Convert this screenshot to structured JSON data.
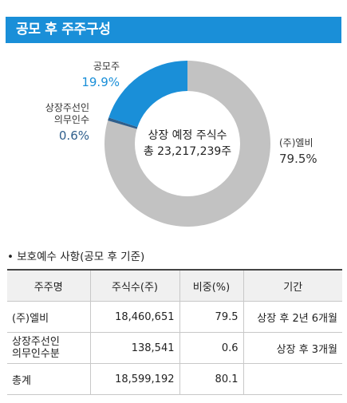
{
  "header": {
    "title": "공모 후 주주구성"
  },
  "chart_data": {
    "type": "pie",
    "style": "donut",
    "center_text": [
      "상장 예정 주식수",
      "총 23,217,239주"
    ],
    "slices": [
      {
        "label": "(주)엘비",
        "value": 79.5,
        "pct_label": "79.5%",
        "color": "#c2c2c2"
      },
      {
        "label": "상장주선인\n의무인수",
        "value": 0.6,
        "pct_label": "0.6%",
        "color": "#2f5f8c"
      },
      {
        "label": "공모주",
        "value": 19.9,
        "pct_label": "19.9%",
        "color": "#1a8fd8"
      }
    ]
  },
  "labels": {
    "gongmo_name": "공모주",
    "gongmo_pct": "19.9%",
    "uimu_name_1": "상장주선인",
    "uimu_name_2": "의무인수",
    "uimu_pct": "0.6%",
    "lb_name": "(주)엘비",
    "lb_pct": "79.5%",
    "center_1": "상장 예정 주식수",
    "center_2": "총 23,217,239주"
  },
  "section": {
    "title": "• 보호예수 사항(공모 후 기준)"
  },
  "table": {
    "headers": [
      "주주명",
      "주식수(주)",
      "비중(%)",
      "기간"
    ],
    "rows": [
      {
        "name": "(주)엘비",
        "shares": "18,460,651",
        "ratio": "79.5",
        "period": "상장 후 2년 6개월"
      },
      {
        "name": "상장주선인\n의무인수분",
        "shares": "138,541",
        "ratio": "0.6",
        "period": "상장 후 3개월"
      },
      {
        "name": "총계",
        "shares": "18,599,192",
        "ratio": "80.1",
        "period": ""
      }
    ]
  }
}
